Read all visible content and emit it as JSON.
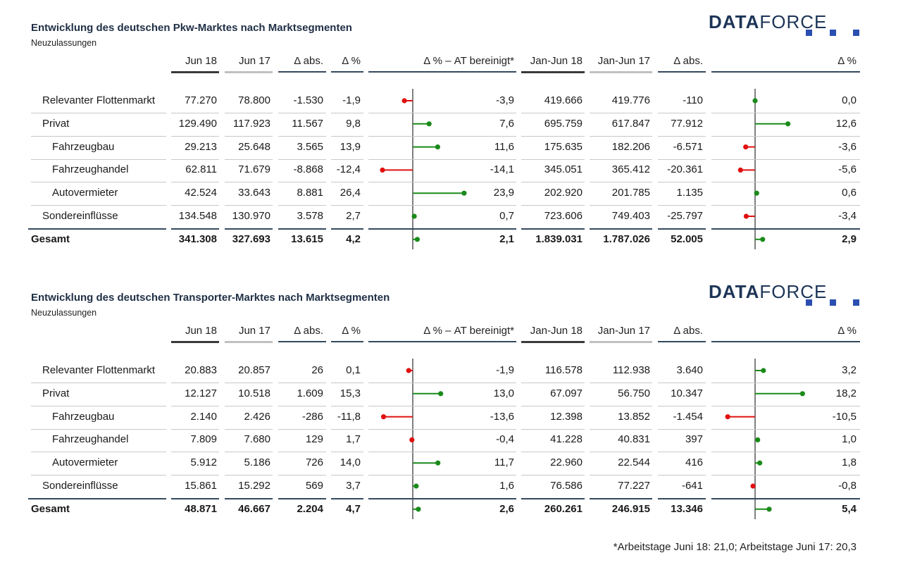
{
  "colors": {
    "positive": "#1a8a1a",
    "negative": "#e01010",
    "axis": "#808080",
    "title": "#1f2f45",
    "logo": "#1d3557",
    "logo_squares": "#2a4fb0",
    "header_dark": "#3a3a3a",
    "header_light": "#c0c0c0",
    "header_navy": "#34495e"
  },
  "logo": {
    "bold": "DATA",
    "light": "FORCE"
  },
  "footnote": "*Arbeitstage Juni 18: 21,0; Arbeitstage Juni 17: 20,3",
  "columns": {
    "jun18": "Jun 18",
    "jun17": "Jun 17",
    "dabs": "Δ abs.",
    "dpct": "Δ %",
    "dpct_at": "Δ % – AT bereinigt*",
    "ytd18": "Jan-Jun 18",
    "ytd17": "Jan-Jun 17",
    "ytd_dabs": "Δ abs.",
    "ytd_dpct": "Δ %"
  },
  "chart_data": [
    {
      "type": "table",
      "title": "Entwicklung des deutschen Pkw-Marktes nach Marktsegmenten",
      "subtitle": "Neuzulassungen",
      "rows": [
        {
          "label": "Relevanter Flottenmarkt",
          "indent": 1,
          "jun18": "77.270",
          "jun17": "78.800",
          "dabs": "-1.530",
          "dpct": "-1,9",
          "at": -3.9,
          "at_label": "-3,9",
          "ytd18": "419.666",
          "ytd17": "419.776",
          "ytd_dabs": "-110",
          "ytd_pct": 0.0,
          "ytd_pct_label": "0,0"
        },
        {
          "label": "Privat",
          "indent": 1,
          "jun18": "129.490",
          "jun17": "117.923",
          "dabs": "11.567",
          "dpct": "9,8",
          "at": 7.6,
          "at_label": "7,6",
          "ytd18": "695.759",
          "ytd17": "617.847",
          "ytd_dabs": "77.912",
          "ytd_pct": 12.6,
          "ytd_pct_label": "12,6"
        },
        {
          "label": "Fahrzeugbau",
          "indent": 2,
          "jun18": "29.213",
          "jun17": "25.648",
          "dabs": "3.565",
          "dpct": "13,9",
          "at": 11.6,
          "at_label": "11,6",
          "ytd18": "175.635",
          "ytd17": "182.206",
          "ytd_dabs": "-6.571",
          "ytd_pct": -3.6,
          "ytd_pct_label": "-3,6"
        },
        {
          "label": "Fahrzeughandel",
          "indent": 2,
          "jun18": "62.811",
          "jun17": "71.679",
          "dabs": "-8.868",
          "dpct": "-12,4",
          "at": -14.1,
          "at_label": "-14,1",
          "ytd18": "345.051",
          "ytd17": "365.412",
          "ytd_dabs": "-20.361",
          "ytd_pct": -5.6,
          "ytd_pct_label": "-5,6"
        },
        {
          "label": "Autovermieter",
          "indent": 2,
          "jun18": "42.524",
          "jun17": "33.643",
          "dabs": "8.881",
          "dpct": "26,4",
          "at": 23.9,
          "at_label": "23,9",
          "ytd18": "202.920",
          "ytd17": "201.785",
          "ytd_dabs": "1.135",
          "ytd_pct": 0.6,
          "ytd_pct_label": "0,6"
        },
        {
          "label": "Sondereinflüsse",
          "indent": 1,
          "jun18": "134.548",
          "jun17": "130.970",
          "dabs": "3.578",
          "dpct": "2,7",
          "at": 0.7,
          "at_label": "0,7",
          "ytd18": "723.606",
          "ytd17": "749.403",
          "ytd_dabs": "-25.797",
          "ytd_pct": -3.4,
          "ytd_pct_label": "-3,4"
        },
        {
          "label": "Gesamt",
          "indent": 0,
          "bold": true,
          "jun18": "341.308",
          "jun17": "327.693",
          "dabs": "13.615",
          "dpct": "4,2",
          "at": 2.1,
          "at_label": "2,1",
          "ytd18": "1.839.031",
          "ytd17": "1.787.026",
          "ytd_dabs": "52.005",
          "ytd_pct": 2.9,
          "ytd_pct_label": "2,9"
        }
      ]
    },
    {
      "type": "table",
      "title": "Entwicklung des deutschen Transporter-Marktes nach Marktsegmenten",
      "subtitle": "Neuzulassungen",
      "rows": [
        {
          "label": "Relevanter Flottenmarkt",
          "indent": 1,
          "jun18": "20.883",
          "jun17": "20.857",
          "dabs": "26",
          "dpct": "0,1",
          "at": -1.9,
          "at_label": "-1,9",
          "ytd18": "116.578",
          "ytd17": "112.938",
          "ytd_dabs": "3.640",
          "ytd_pct": 3.2,
          "ytd_pct_label": "3,2"
        },
        {
          "label": "Privat",
          "indent": 1,
          "jun18": "12.127",
          "jun17": "10.518",
          "dabs": "1.609",
          "dpct": "15,3",
          "at": 13.0,
          "at_label": "13,0",
          "ytd18": "67.097",
          "ytd17": "56.750",
          "ytd_dabs": "10.347",
          "ytd_pct": 18.2,
          "ytd_pct_label": "18,2"
        },
        {
          "label": "Fahrzeugbau",
          "indent": 2,
          "jun18": "2.140",
          "jun17": "2.426",
          "dabs": "-286",
          "dpct": "-11,8",
          "at": -13.6,
          "at_label": "-13,6",
          "ytd18": "12.398",
          "ytd17": "13.852",
          "ytd_dabs": "-1.454",
          "ytd_pct": -10.5,
          "ytd_pct_label": "-10,5"
        },
        {
          "label": "Fahrzeughandel",
          "indent": 2,
          "jun18": "7.809",
          "jun17": "7.680",
          "dabs": "129",
          "dpct": "1,7",
          "at": -0.4,
          "at_label": "-0,4",
          "ytd18": "41.228",
          "ytd17": "40.831",
          "ytd_dabs": "397",
          "ytd_pct": 1.0,
          "ytd_pct_label": "1,0"
        },
        {
          "label": "Autovermieter",
          "indent": 2,
          "jun18": "5.912",
          "jun17": "5.186",
          "dabs": "726",
          "dpct": "14,0",
          "at": 11.7,
          "at_label": "11,7",
          "ytd18": "22.960",
          "ytd17": "22.544",
          "ytd_dabs": "416",
          "ytd_pct": 1.8,
          "ytd_pct_label": "1,8"
        },
        {
          "label": "Sondereinflüsse",
          "indent": 1,
          "jun18": "15.861",
          "jun17": "15.292",
          "dabs": "569",
          "dpct": "3,7",
          "at": 1.6,
          "at_label": "1,6",
          "ytd18": "76.586",
          "ytd17": "77.227",
          "ytd_dabs": "-641",
          "ytd_pct": -0.8,
          "ytd_pct_label": "-0,8"
        },
        {
          "label": "Gesamt",
          "indent": 0,
          "bold": true,
          "jun18": "48.871",
          "jun17": "46.667",
          "dabs": "2.204",
          "dpct": "4,7",
          "at": 2.6,
          "at_label": "2,6",
          "ytd18": "260.261",
          "ytd17": "246.915",
          "ytd_dabs": "13.346",
          "ytd_pct": 5.4,
          "ytd_pct_label": "5,4"
        }
      ]
    }
  ]
}
